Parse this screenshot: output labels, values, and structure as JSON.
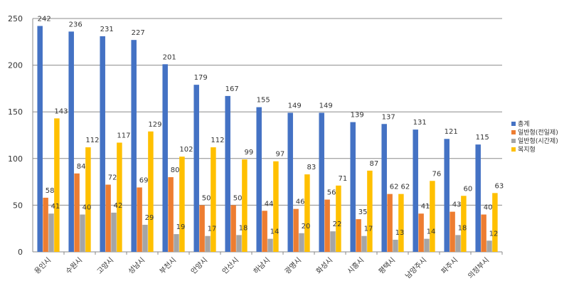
{
  "chart_data": {
    "type": "bar",
    "categories": [
      "용인시",
      "수원시",
      "고양시",
      "성남시",
      "부천시",
      "안양시",
      "안산시",
      "하남시",
      "광명시",
      "화성시",
      "시흥시",
      "평택시",
      "남양주시",
      "파주시",
      "의정부시"
    ],
    "series": [
      {
        "name": "총계",
        "color": "#4472C4",
        "values": [
          242,
          236,
          231,
          227,
          201,
          179,
          167,
          155,
          149,
          149,
          139,
          137,
          131,
          121,
          115
        ]
      },
      {
        "name": "일반형(전일제)",
        "color": "#ED7D31",
        "values": [
          58,
          84,
          72,
          69,
          80,
          50,
          50,
          44,
          46,
          56,
          35,
          62,
          41,
          43,
          40
        ]
      },
      {
        "name": "일반형(시간제)",
        "color": "#A5A5A5",
        "values": [
          41,
          40,
          42,
          29,
          19,
          17,
          18,
          14,
          20,
          22,
          17,
          13,
          14,
          18,
          12
        ]
      },
      {
        "name": "복지형",
        "color": "#FFC000",
        "values": [
          143,
          112,
          117,
          129,
          102,
          112,
          99,
          97,
          83,
          71,
          87,
          62,
          76,
          60,
          63
        ]
      }
    ],
    "title": "",
    "xlabel": "",
    "ylabel": "",
    "ylim": [
      0,
      250
    ],
    "yticks": [
      0,
      50,
      100,
      150,
      200,
      250
    ],
    "grid": true,
    "legend": "right"
  }
}
